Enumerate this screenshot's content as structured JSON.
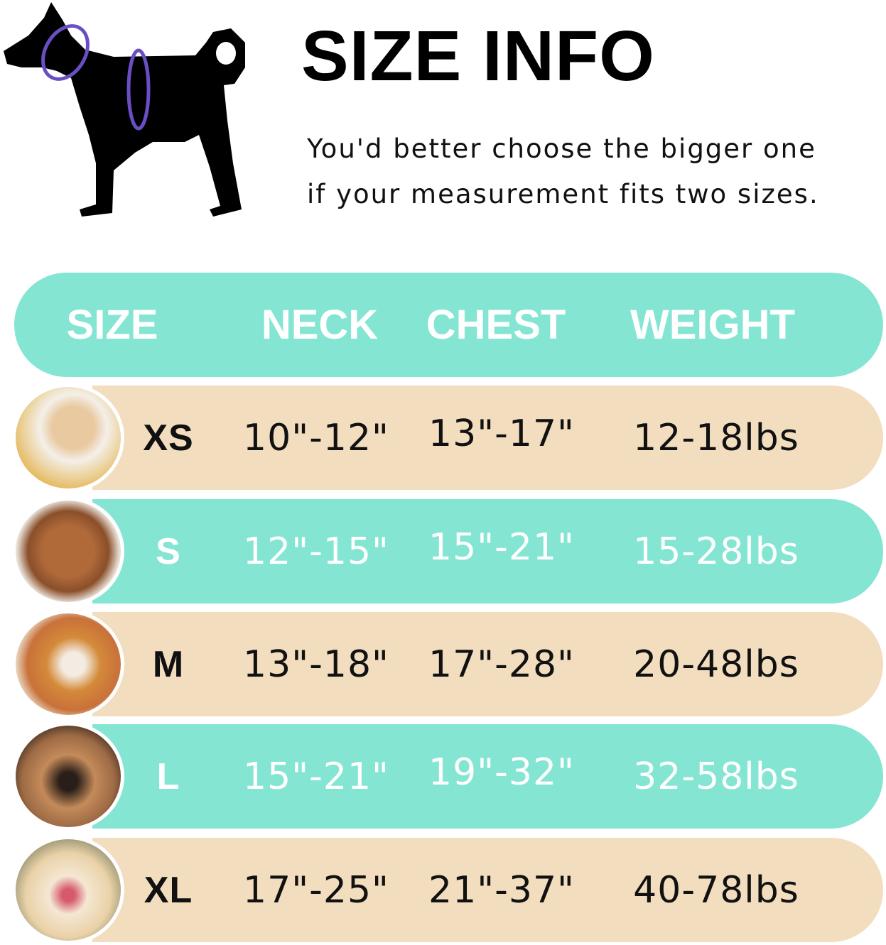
{
  "title": "SIZE INFO",
  "subtitle": [
    "You'd better choose the bigger one",
    "if your measurement fits two sizes."
  ],
  "colors": {
    "teal": "#84E5D3",
    "tan": "#F2DDBE",
    "ring": "#6A4FC4"
  },
  "table": {
    "headers": [
      "SIZE",
      "NECK",
      "CHEST",
      "WEIGHT"
    ],
    "rows": [
      {
        "size": "XS",
        "neck": "10\"-12\"",
        "chest": "13\"-17\"",
        "weight": "12-18lbs",
        "style": "tan",
        "photo": "pomeranian"
      },
      {
        "size": "S",
        "neck": "12\"-15\"",
        "chest": "15\"-21\"",
        "weight": "15-28lbs",
        "style": "teal",
        "photo": "poodle"
      },
      {
        "size": "M",
        "neck": "13\"-18\"",
        "chest": "17\"-28\"",
        "weight": "20-48lbs",
        "style": "tan",
        "photo": "shiba-inu"
      },
      {
        "size": "L",
        "neck": "15\"-21\"",
        "chest": "19\"-32\"",
        "weight": "32-58lbs",
        "style": "teal",
        "photo": "french-bulldog"
      },
      {
        "size": "XL",
        "neck": "17\"-25\"",
        "chest": "21\"-37\"",
        "weight": "40-78lbs",
        "style": "tan",
        "photo": "labrador"
      }
    ]
  }
}
